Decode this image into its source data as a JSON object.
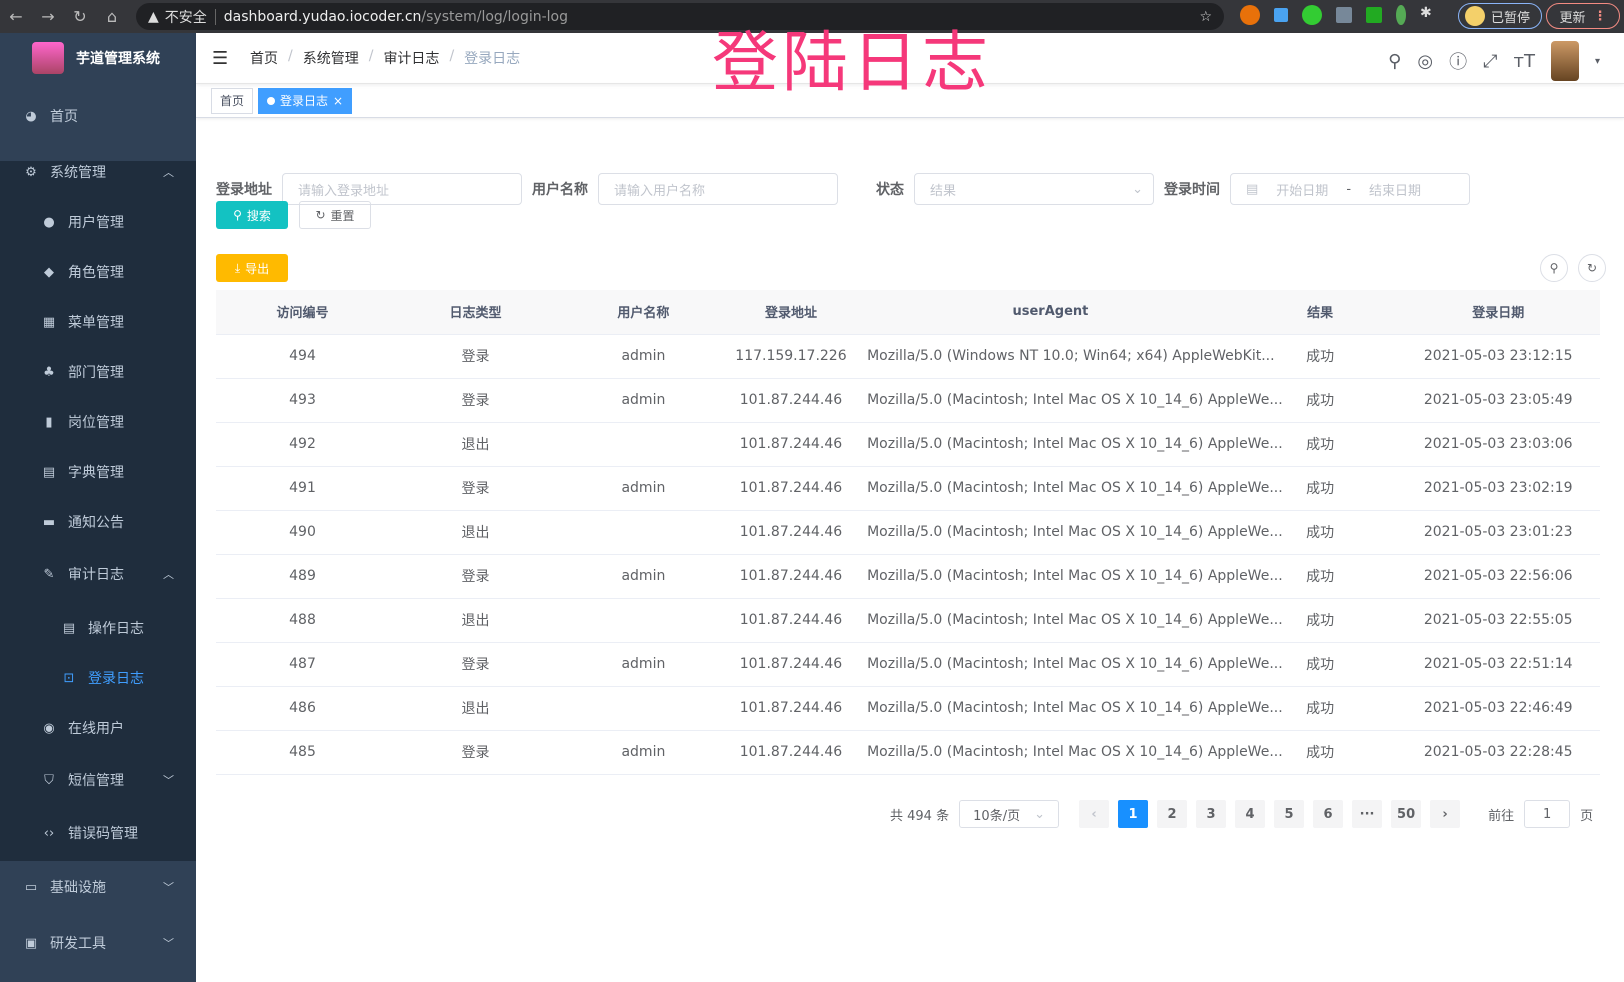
{
  "browser": {
    "security": "不安全",
    "host": "dashboard.yudao.iocoder.cn",
    "path": "/system/log/login-log",
    "profile": "已暂停",
    "update": "更新"
  },
  "overlay_title": "登陆日志",
  "sidebar": {
    "app_name": "芋道管理系统",
    "items": [
      {
        "label": "首页",
        "icon": "dashboard-icon"
      },
      {
        "label": "系统管理",
        "icon": "gear-icon"
      },
      {
        "label": "用户管理",
        "icon": "user-icon"
      },
      {
        "label": "角色管理",
        "icon": "peoples-icon"
      },
      {
        "label": "菜单管理",
        "icon": "tree-table-icon"
      },
      {
        "label": "部门管理",
        "icon": "tree-icon"
      },
      {
        "label": "岗位管理",
        "icon": "post-icon"
      },
      {
        "label": "字典管理",
        "icon": "dict-icon"
      },
      {
        "label": "通知公告",
        "icon": "message-icon"
      },
      {
        "label": "审计日志",
        "icon": "log-icon"
      },
      {
        "label": "操作日志",
        "icon": "form-icon"
      },
      {
        "label": "登录日志",
        "icon": "logininfor-icon"
      },
      {
        "label": "在线用户",
        "icon": "online-icon"
      },
      {
        "label": "短信管理",
        "icon": "validcode-icon"
      },
      {
        "label": "错误码管理",
        "icon": "code-icon"
      },
      {
        "label": "基础设施",
        "icon": "monitor-icon"
      },
      {
        "label": "研发工具",
        "icon": "tool-icon"
      }
    ]
  },
  "breadcrumb": [
    "首页",
    "系统管理",
    "审计日志",
    "登录日志"
  ],
  "tags": [
    {
      "label": "首页"
    },
    {
      "label": "登录日志",
      "close": "×"
    }
  ],
  "filters": {
    "address_label": "登录地址",
    "address_placeholder": "请输入登录地址",
    "username_label": "用户名称",
    "username_placeholder": "请输入用户名称",
    "status_label": "状态",
    "status_placeholder": "结果",
    "time_label": "登录时间",
    "start_placeholder": "开始日期",
    "range_sep": "-",
    "end_placeholder": "结束日期"
  },
  "buttons": {
    "search": "搜索",
    "reset": "重置",
    "export": "导出"
  },
  "colors": {
    "primary": "#1890ff",
    "search": "#13c2c2",
    "export": "#ffba00",
    "sidebar": "#304156",
    "overlay": "#f5387a"
  },
  "table": {
    "headers": [
      "访问编号",
      "日志类型",
      "用户名称",
      "登录地址",
      "userAgent",
      "结果",
      "登录日期"
    ],
    "rows": [
      [
        "494",
        "登录",
        "admin",
        "117.159.17.226",
        "Mozilla/5.0 (Windows NT 10.0; Win64; x64) AppleWebKit...",
        "成功",
        "2021-05-03 23:12:15"
      ],
      [
        "493",
        "登录",
        "admin",
        "101.87.244.46",
        "Mozilla/5.0 (Macintosh; Intel Mac OS X 10_14_6) AppleWe...",
        "成功",
        "2021-05-03 23:05:49"
      ],
      [
        "492",
        "退出",
        "",
        "101.87.244.46",
        "Mozilla/5.0 (Macintosh; Intel Mac OS X 10_14_6) AppleWe...",
        "成功",
        "2021-05-03 23:03:06"
      ],
      [
        "491",
        "登录",
        "admin",
        "101.87.244.46",
        "Mozilla/5.0 (Macintosh; Intel Mac OS X 10_14_6) AppleWe...",
        "成功",
        "2021-05-03 23:02:19"
      ],
      [
        "490",
        "退出",
        "",
        "101.87.244.46",
        "Mozilla/5.0 (Macintosh; Intel Mac OS X 10_14_6) AppleWe...",
        "成功",
        "2021-05-03 23:01:23"
      ],
      [
        "489",
        "登录",
        "admin",
        "101.87.244.46",
        "Mozilla/5.0 (Macintosh; Intel Mac OS X 10_14_6) AppleWe...",
        "成功",
        "2021-05-03 22:56:06"
      ],
      [
        "488",
        "退出",
        "",
        "101.87.244.46",
        "Mozilla/5.0 (Macintosh; Intel Mac OS X 10_14_6) AppleWe...",
        "成功",
        "2021-05-03 22:55:05"
      ],
      [
        "487",
        "登录",
        "admin",
        "101.87.244.46",
        "Mozilla/5.0 (Macintosh; Intel Mac OS X 10_14_6) AppleWe...",
        "成功",
        "2021-05-03 22:51:14"
      ],
      [
        "486",
        "退出",
        "",
        "101.87.244.46",
        "Mozilla/5.0 (Macintosh; Intel Mac OS X 10_14_6) AppleWe...",
        "成功",
        "2021-05-03 22:46:49"
      ],
      [
        "485",
        "登录",
        "admin",
        "101.87.244.46",
        "Mozilla/5.0 (Macintosh; Intel Mac OS X 10_14_6) AppleWe...",
        "成功",
        "2021-05-03 22:28:45"
      ]
    ]
  },
  "pagination": {
    "total": "共 494 条",
    "page_size": "10条/页",
    "pages": [
      "1",
      "2",
      "3",
      "4",
      "5",
      "6",
      "···",
      "50"
    ],
    "current": "1",
    "goto_label": "前往",
    "goto_value": "1",
    "goto_suffix": "页"
  }
}
